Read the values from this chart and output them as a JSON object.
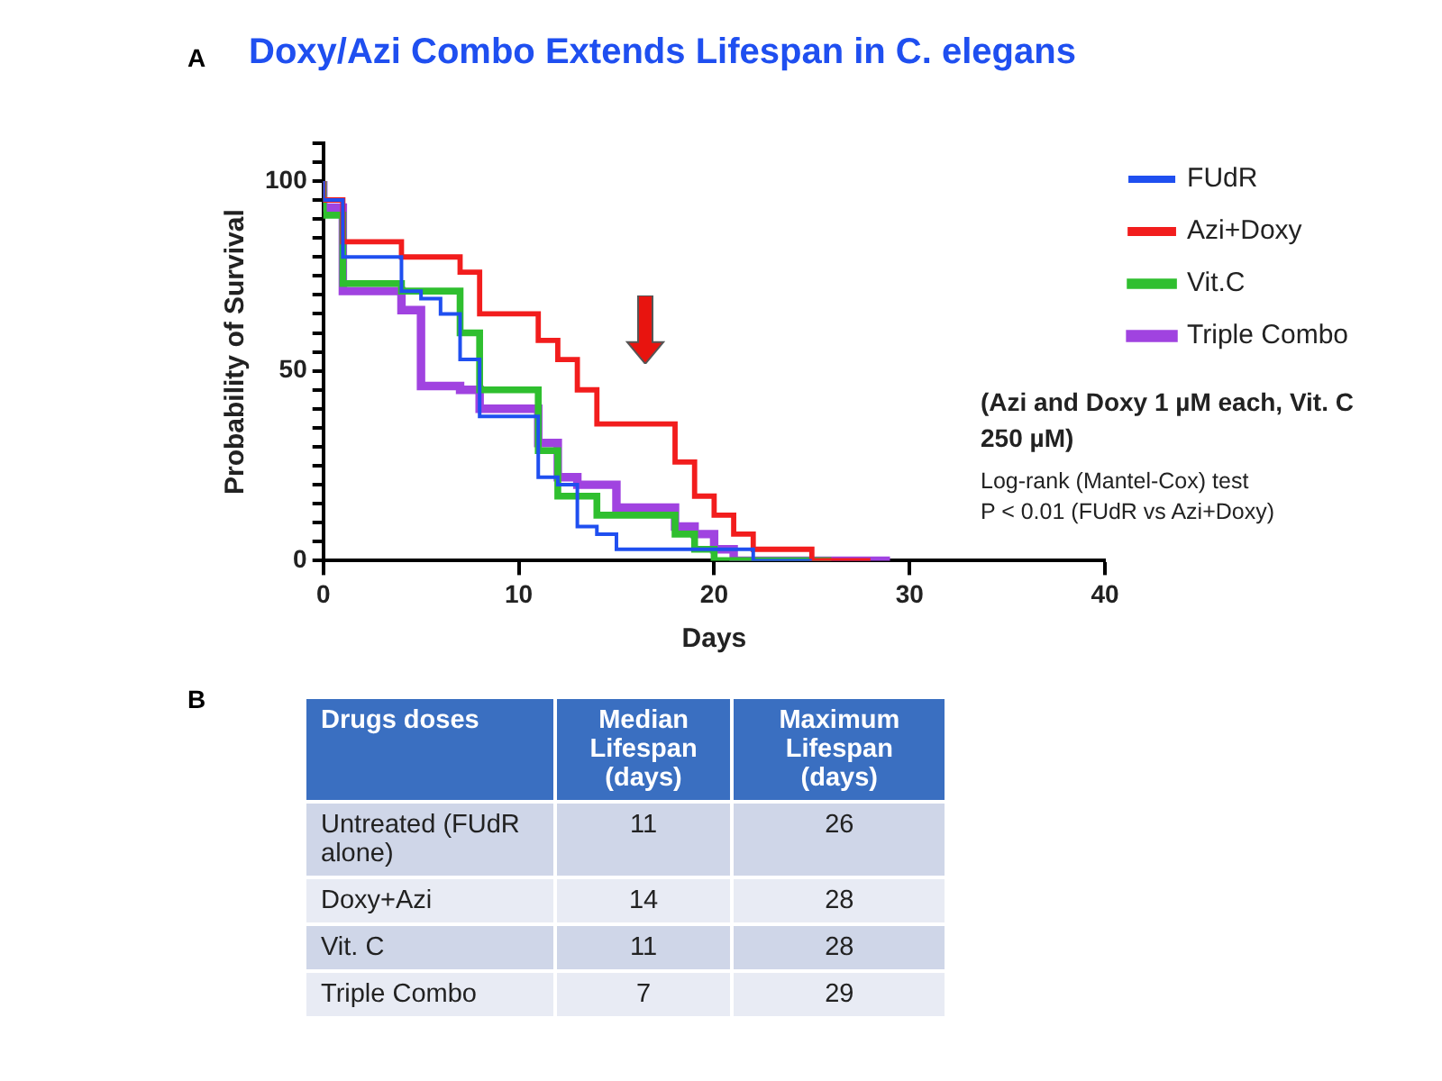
{
  "chart_data": [
    {
      "type": "step",
      "title": "Doxy/Azi Combo Extends Lifespan in C. elegans",
      "xlabel": "Days",
      "ylabel": "Probability of Survival",
      "xlim": [
        0,
        40
      ],
      "xticks": [
        0,
        10,
        20,
        30,
        40
      ],
      "ylim": [
        0,
        110
      ],
      "yticks": [
        0,
        {
          "value": 5,
          "label": null
        },
        {
          "value": 10,
          "label": null
        },
        {
          "value": 15,
          "label": null
        },
        {
          "value": 20,
          "label": null
        },
        {
          "value": 25,
          "label": null
        },
        {
          "value": 30,
          "label": null
        },
        {
          "value": 35,
          "label": null
        },
        {
          "value": 40,
          "label": null
        },
        {
          "value": 45,
          "label": null
        },
        50,
        {
          "value": 55,
          "label": null
        },
        {
          "value": 60,
          "label": null
        },
        {
          "value": 65,
          "label": null
        },
        {
          "value": 70,
          "label": null
        },
        {
          "value": 75,
          "label": null
        },
        {
          "value": 80,
          "label": null
        },
        {
          "value": 85,
          "label": null
        },
        {
          "value": 90,
          "label": null
        },
        {
          "value": 95,
          "label": null
        },
        100,
        {
          "value": 105,
          "label": null
        },
        {
          "value": 110,
          "label": null
        }
      ],
      "grid": false,
      "legend": "right",
      "marker": "none",
      "annotations": [
        "A",
        "(Azi and Doxy 1 µM each, Vit. C 250 µM)",
        "Log-rank (Mantel-Cox)  test",
        "P < 0.01  (FUdR vs Azi+Doxy)"
      ],
      "series": [
        {
          "name": "FUdR",
          "color": "#1f4ff0",
          "x": [
            0,
            1,
            4,
            5,
            6,
            7,
            8,
            11,
            12,
            13,
            14,
            15,
            22,
            25
          ],
          "values": [
            100,
            95,
            80,
            71,
            69,
            65,
            53,
            38,
            22,
            20,
            9,
            7,
            3,
            0
          ]
        },
        {
          "name": "Azi+Doxy",
          "color": "#f21d1d",
          "x": [
            0,
            1,
            4,
            7,
            8,
            11,
            12,
            13,
            14,
            18,
            19,
            20,
            21,
            22,
            25,
            28
          ],
          "values": [
            100,
            95,
            84,
            80,
            76,
            65,
            58,
            53,
            45,
            36,
            26,
            17,
            12,
            7,
            3,
            0
          ]
        },
        {
          "name": "Vit.C",
          "color": "#2fbf2f",
          "x": [
            0,
            1,
            4,
            7,
            8,
            11,
            12,
            14,
            18,
            19,
            20,
            26
          ],
          "values": [
            100,
            91,
            73,
            71,
            60,
            45,
            29,
            17,
            12,
            7,
            3,
            0
          ]
        },
        {
          "name": "Triple Combo",
          "color": "#a043e0",
          "x": [
            0,
            1,
            4,
            5,
            7,
            8,
            11,
            12,
            13,
            15,
            18,
            19,
            20,
            21,
            29
          ],
          "values": [
            100,
            93,
            71,
            66,
            46,
            45,
            40,
            31,
            22,
            20,
            14,
            9,
            7,
            3,
            0
          ]
        }
      ]
    },
    {
      "type": "other",
      "title": "B",
      "legend_title": "Drugs doses",
      "categories": [
        "Untreated (FUdR alone)",
        "Doxy+Azi",
        "Vit. C",
        "Triple Combo"
      ],
      "data_labels": true,
      "series": [
        {
          "name": "Median Lifespan (days)",
          "values": [
            11,
            14,
            11,
            7
          ],
          "colors": [
            "#cfd6e8",
            "#e8ebf4",
            "#cfd6e8",
            "#e8ebf4"
          ]
        },
        {
          "name": "Maximum Lifespan (days)",
          "values": [
            26,
            28,
            28,
            29
          ],
          "colors": [
            "#cfd6e8",
            "#e8ebf4",
            "#cfd6e8",
            "#e8ebf4"
          ]
        }
      ]
    }
  ]
}
